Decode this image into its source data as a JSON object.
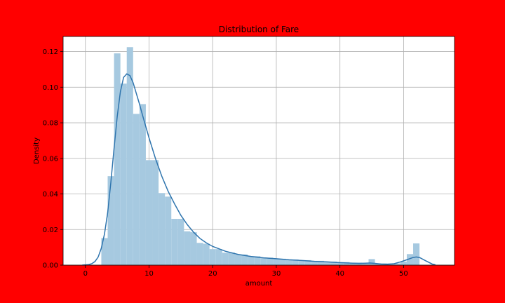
{
  "colors": {
    "figure_background": "#ff0000",
    "plot_background": "#ffffff",
    "bar_fill": "#a6c9e0",
    "kde_line": "#2f75ae",
    "grid": "#b0b0b0"
  },
  "chart_data": {
    "type": "bar",
    "title": "Distribution of Fare",
    "xlabel": "amount",
    "ylabel": "Density",
    "xlim": [
      -3.5,
      58
    ],
    "ylim": [
      0,
      0.1285
    ],
    "xticks": [
      0,
      10,
      20,
      30,
      40,
      50
    ],
    "yticks": [
      0.0,
      0.02,
      0.04,
      0.06,
      0.08,
      0.1,
      0.12
    ],
    "ytick_labels": [
      "0.00",
      "0.02",
      "0.04",
      "0.06",
      "0.08",
      "0.10",
      "0.12"
    ],
    "grid": true,
    "histogram": {
      "bin_edges": [
        2.5,
        3.5,
        4.5,
        5.5,
        6.5,
        7.5,
        8.5,
        9.5,
        10.5,
        11.5,
        12.5,
        13.5,
        14.5,
        15.5,
        16.5,
        17.5,
        18.5,
        19.5,
        20.5,
        21.5,
        22.5,
        23.5,
        24.5,
        25.5,
        26.5,
        27.5,
        28.5,
        29.5,
        30.5,
        31.5,
        32.5,
        33.5,
        34.5,
        35.5,
        36.5,
        37.5,
        38.5,
        39.5,
        40.5,
        41.5,
        42.5,
        43.5,
        44.5,
        45.5,
        46.5,
        47.5,
        48.5,
        49.5,
        50.5,
        51.5,
        52.5
      ],
      "densities": [
        0.0152,
        0.05,
        0.119,
        0.102,
        0.1225,
        0.085,
        0.0905,
        0.059,
        0.059,
        0.0405,
        0.0385,
        0.026,
        0.026,
        0.019,
        0.0185,
        0.0125,
        0.012,
        0.009,
        0.009,
        0.007,
        0.007,
        0.006,
        0.006,
        0.005,
        0.005,
        0.0042,
        0.0042,
        0.0036,
        0.0036,
        0.0032,
        0.0032,
        0.0028,
        0.0028,
        0.0024,
        0.0024,
        0.002,
        0.002,
        0.0017,
        0.0017,
        0.0014,
        0.0014,
        0.0012,
        0.0034,
        0.001,
        0.001,
        0.001,
        0.001,
        0.002,
        0.0062,
        0.0122
      ]
    },
    "kde": {
      "x": [
        -0.5,
        0.5,
        1.0,
        1.5,
        2.0,
        2.5,
        3.0,
        3.5,
        4.0,
        4.5,
        5.0,
        5.5,
        6.0,
        6.5,
        7.0,
        7.5,
        8.0,
        8.5,
        9.0,
        10.0,
        11.0,
        12.0,
        13.0,
        14.0,
        15.0,
        16.0,
        17.0,
        18.0,
        19.0,
        20.0,
        22.0,
        24.0,
        26.0,
        28.0,
        30.0,
        32.0,
        34.0,
        36.0,
        38.0,
        40.0,
        42.0,
        43.0,
        44.0,
        44.7,
        45.5,
        46.5,
        47.5,
        48.5,
        49.5,
        50.5,
        51.5,
        52.0,
        52.5,
        53.5,
        54.5,
        55.0
      ],
      "y": [
        0.0,
        0.0003,
        0.0008,
        0.002,
        0.0045,
        0.0095,
        0.0175,
        0.0295,
        0.0465,
        0.0655,
        0.0835,
        0.0975,
        0.1055,
        0.1075,
        0.1065,
        0.1025,
        0.0965,
        0.0905,
        0.084,
        0.0715,
        0.06,
        0.05,
        0.0415,
        0.0345,
        0.028,
        0.0228,
        0.0185,
        0.015,
        0.0125,
        0.0105,
        0.0078,
        0.006,
        0.0049,
        0.0041,
        0.0036,
        0.003,
        0.0026,
        0.0021,
        0.0018,
        0.0014,
        0.0011,
        0.001,
        0.0011,
        0.0012,
        0.001,
        0.0006,
        0.0005,
        0.0008,
        0.0018,
        0.003,
        0.0043,
        0.0046,
        0.0043,
        0.0024,
        0.0006,
        0.0002
      ]
    }
  }
}
